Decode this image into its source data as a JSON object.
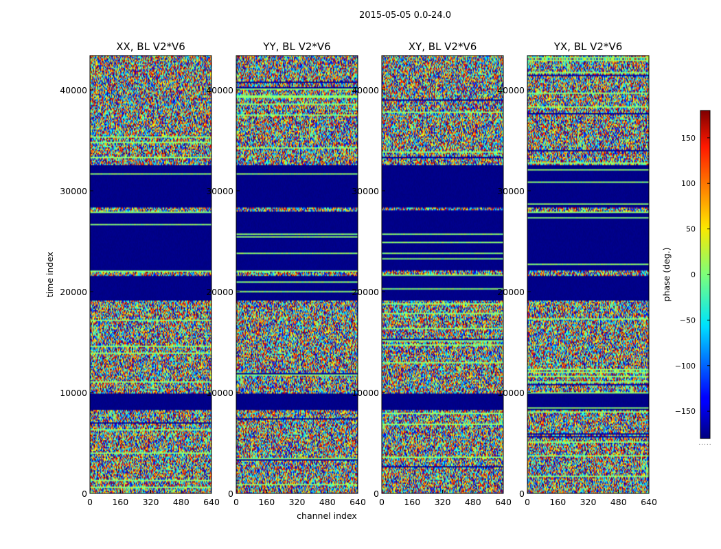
{
  "chart_data": {
    "type": "heatmap",
    "suptitle": "2015-05-05 0.0-24.0",
    "panels": [
      {
        "title": "XX, BL V2*V6"
      },
      {
        "title": "YY, BL V2*V6"
      },
      {
        "title": "XY, BL V2*V6"
      },
      {
        "title": "YX, BL V2*V6"
      }
    ],
    "xlabel": "channel index",
    "ylabel": "time index",
    "xlim": [
      0,
      640
    ],
    "ylim": [
      0,
      43400
    ],
    "xticks": [
      0,
      160,
      320,
      480,
      640
    ],
    "yticks": [
      0,
      10000,
      20000,
      30000,
      40000
    ],
    "colorbar": {
      "label": "phase (deg.)",
      "range": [
        -180,
        180
      ],
      "ticks": [
        150,
        100,
        50,
        0,
        -50,
        -100,
        -150
      ],
      "tick_labels": [
        "150",
        "100",
        "50",
        "0",
        "−50",
        "−100",
        "−150"
      ],
      "colormap": "jet",
      "footer": "....."
    },
    "flagged_time_ranges": [
      [
        8300,
        9900
      ],
      [
        19100,
        21500
      ],
      [
        22100,
        28000
      ],
      [
        28300,
        32500
      ]
    ],
    "noise_range": [
      -180,
      180
    ]
  }
}
